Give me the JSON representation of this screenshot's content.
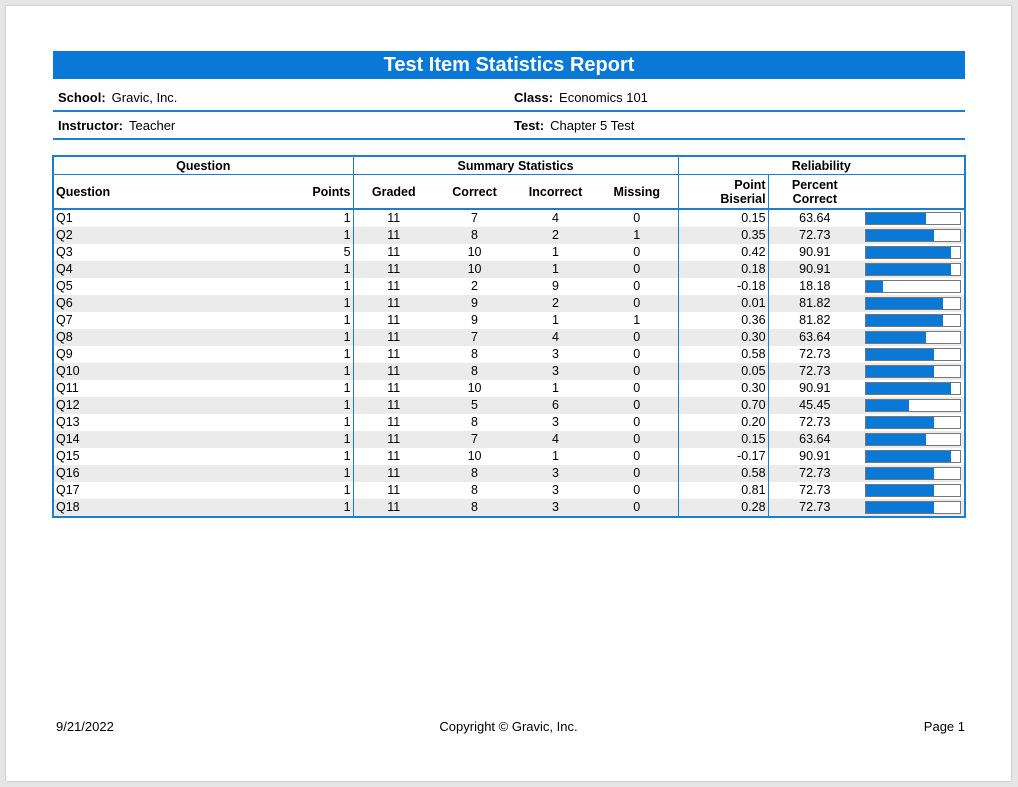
{
  "report": {
    "title": "Test Item Statistics Report",
    "school_label": "School:",
    "school": "Gravic, Inc.",
    "class_label": "Class:",
    "class": "Economics 101",
    "instructor_label": "Instructor:",
    "instructor": "Teacher",
    "test_label": "Test:",
    "test": "Chapter 5 Test"
  },
  "table": {
    "groups": {
      "question": "Question",
      "summary": "Summary Statistics",
      "reliability": "Reliability"
    },
    "headers": {
      "question": "Question",
      "points": "Points",
      "graded": "Graded",
      "correct": "Correct",
      "incorrect": "Incorrect",
      "missing": "Missing",
      "point_biserial_1": "Point",
      "point_biserial_2": "Biserial",
      "percent_correct_1": "Percent",
      "percent_correct_2": "Correct"
    },
    "rows": [
      {
        "q": "Q1",
        "points": "1",
        "graded": "11",
        "correct": "7",
        "incorrect": "4",
        "missing": "0",
        "pb": "0.15",
        "pct": "63.64"
      },
      {
        "q": "Q2",
        "points": "1",
        "graded": "11",
        "correct": "8",
        "incorrect": "2",
        "missing": "1",
        "pb": "0.35",
        "pct": "72.73"
      },
      {
        "q": "Q3",
        "points": "5",
        "graded": "11",
        "correct": "10",
        "incorrect": "1",
        "missing": "0",
        "pb": "0.42",
        "pct": "90.91"
      },
      {
        "q": "Q4",
        "points": "1",
        "graded": "11",
        "correct": "10",
        "incorrect": "1",
        "missing": "0",
        "pb": "0.18",
        "pct": "90.91"
      },
      {
        "q": "Q5",
        "points": "1",
        "graded": "11",
        "correct": "2",
        "incorrect": "9",
        "missing": "0",
        "pb": "-0.18",
        "pct": "18.18"
      },
      {
        "q": "Q6",
        "points": "1",
        "graded": "11",
        "correct": "9",
        "incorrect": "2",
        "missing": "0",
        "pb": "0.01",
        "pct": "81.82"
      },
      {
        "q": "Q7",
        "points": "1",
        "graded": "11",
        "correct": "9",
        "incorrect": "1",
        "missing": "1",
        "pb": "0.36",
        "pct": "81.82"
      },
      {
        "q": "Q8",
        "points": "1",
        "graded": "11",
        "correct": "7",
        "incorrect": "4",
        "missing": "0",
        "pb": "0.30",
        "pct": "63.64"
      },
      {
        "q": "Q9",
        "points": "1",
        "graded": "11",
        "correct": "8",
        "incorrect": "3",
        "missing": "0",
        "pb": "0.58",
        "pct": "72.73"
      },
      {
        "q": "Q10",
        "points": "1",
        "graded": "11",
        "correct": "8",
        "incorrect": "3",
        "missing": "0",
        "pb": "0.05",
        "pct": "72.73"
      },
      {
        "q": "Q11",
        "points": "1",
        "graded": "11",
        "correct": "10",
        "incorrect": "1",
        "missing": "0",
        "pb": "0.30",
        "pct": "90.91"
      },
      {
        "q": "Q12",
        "points": "1",
        "graded": "11",
        "correct": "5",
        "incorrect": "6",
        "missing": "0",
        "pb": "0.70",
        "pct": "45.45"
      },
      {
        "q": "Q13",
        "points": "1",
        "graded": "11",
        "correct": "8",
        "incorrect": "3",
        "missing": "0",
        "pb": "0.20",
        "pct": "72.73"
      },
      {
        "q": "Q14",
        "points": "1",
        "graded": "11",
        "correct": "7",
        "incorrect": "4",
        "missing": "0",
        "pb": "0.15",
        "pct": "63.64"
      },
      {
        "q": "Q15",
        "points": "1",
        "graded": "11",
        "correct": "10",
        "incorrect": "1",
        "missing": "0",
        "pb": "-0.17",
        "pct": "90.91"
      },
      {
        "q": "Q16",
        "points": "1",
        "graded": "11",
        "correct": "8",
        "incorrect": "3",
        "missing": "0",
        "pb": "0.58",
        "pct": "72.73"
      },
      {
        "q": "Q17",
        "points": "1",
        "graded": "11",
        "correct": "8",
        "incorrect": "3",
        "missing": "0",
        "pb": "0.81",
        "pct": "72.73"
      },
      {
        "q": "Q18",
        "points": "1",
        "graded": "11",
        "correct": "8",
        "incorrect": "3",
        "missing": "0",
        "pb": "0.28",
        "pct": "72.73"
      }
    ]
  },
  "footer": {
    "date": "9/21/2022",
    "copyright": "Copyright © Gravic, Inc.",
    "page": "Page 1"
  },
  "colors": {
    "accent": "#0a78d7",
    "row_alt": "#ebebeb"
  }
}
